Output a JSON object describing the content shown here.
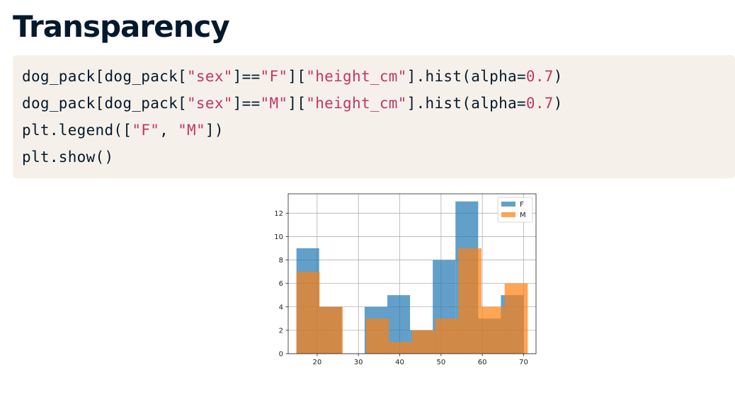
{
  "page": {
    "title": "Transparency"
  },
  "code": {
    "lines": [
      [
        {
          "t": "dog_pack[dog_pack[",
          "k": "plain"
        },
        {
          "t": "\"sex\"",
          "k": "str"
        },
        {
          "t": "]==",
          "k": "plain"
        },
        {
          "t": "\"F\"",
          "k": "str"
        },
        {
          "t": "][",
          "k": "plain"
        },
        {
          "t": "\"height_cm\"",
          "k": "str"
        },
        {
          "t": "].hist(alpha=",
          "k": "plain"
        },
        {
          "t": "0.7",
          "k": "num"
        },
        {
          "t": ")",
          "k": "plain"
        }
      ],
      [
        {
          "t": "dog_pack[dog_pack[",
          "k": "plain"
        },
        {
          "t": "\"sex\"",
          "k": "str"
        },
        {
          "t": "]==",
          "k": "plain"
        },
        {
          "t": "\"M\"",
          "k": "str"
        },
        {
          "t": "][",
          "k": "plain"
        },
        {
          "t": "\"height_cm\"",
          "k": "str"
        },
        {
          "t": "].hist(alpha=",
          "k": "plain"
        },
        {
          "t": "0.7",
          "k": "num"
        },
        {
          "t": ")",
          "k": "plain"
        }
      ],
      [
        {
          "t": "plt.legend([",
          "k": "plain"
        },
        {
          "t": "\"F\"",
          "k": "str"
        },
        {
          "t": ", ",
          "k": "plain"
        },
        {
          "t": "\"M\"",
          "k": "str"
        },
        {
          "t": "])",
          "k": "plain"
        }
      ],
      [
        {
          "t": "plt.show()",
          "k": "plain"
        }
      ]
    ]
  },
  "chart_data": {
    "type": "histogram",
    "xlim": [
      13,
      73
    ],
    "ylim": [
      0,
      13.65
    ],
    "xticks": [
      20,
      30,
      40,
      50,
      60,
      70
    ],
    "yticks": [
      0,
      2,
      4,
      6,
      8,
      10,
      12
    ],
    "grid": true,
    "legend": {
      "placement": "top-right",
      "entries": [
        "F",
        "M"
      ]
    },
    "alpha": 0.7,
    "series": [
      {
        "name": "F",
        "color": "#1f77b4",
        "bins": [
          {
            "x0": 15.0,
            "x1": 20.5,
            "count": 9
          },
          {
            "x0": 20.5,
            "x1": 26.0,
            "count": 4
          },
          {
            "x0": 26.0,
            "x1": 31.5,
            "count": 0
          },
          {
            "x0": 31.5,
            "x1": 37.0,
            "count": 4
          },
          {
            "x0": 37.0,
            "x1": 42.5,
            "count": 5
          },
          {
            "x0": 42.5,
            "x1": 48.0,
            "count": 2
          },
          {
            "x0": 48.0,
            "x1": 53.5,
            "count": 8
          },
          {
            "x0": 53.5,
            "x1": 59.0,
            "count": 13
          },
          {
            "x0": 59.0,
            "x1": 64.5,
            "count": 3
          },
          {
            "x0": 64.5,
            "x1": 70.0,
            "count": 5
          }
        ]
      },
      {
        "name": "M",
        "color": "#ff7f0e",
        "bins": [
          {
            "x0": 15.0,
            "x1": 20.6,
            "count": 7
          },
          {
            "x0": 20.6,
            "x1": 26.2,
            "count": 4
          },
          {
            "x0": 26.2,
            "x1": 31.8,
            "count": 0
          },
          {
            "x0": 31.8,
            "x1": 37.4,
            "count": 3
          },
          {
            "x0": 37.4,
            "x1": 43.0,
            "count": 1
          },
          {
            "x0": 43.0,
            "x1": 48.6,
            "count": 2
          },
          {
            "x0": 48.6,
            "x1": 54.2,
            "count": 3
          },
          {
            "x0": 54.2,
            "x1": 59.8,
            "count": 9
          },
          {
            "x0": 59.8,
            "x1": 65.4,
            "count": 4
          },
          {
            "x0": 65.4,
            "x1": 71.0,
            "count": 6
          }
        ]
      }
    ]
  }
}
